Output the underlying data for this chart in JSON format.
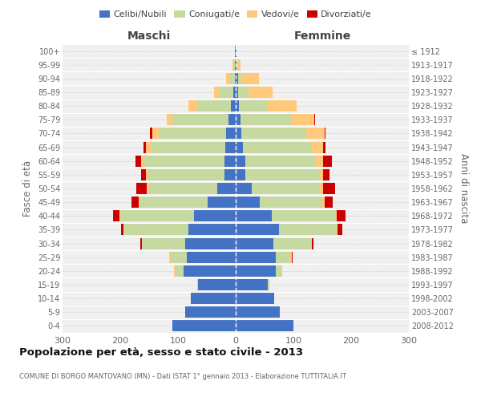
{
  "age_groups": [
    "0-4",
    "5-9",
    "10-14",
    "15-19",
    "20-24",
    "25-29",
    "30-34",
    "35-39",
    "40-44",
    "45-49",
    "50-54",
    "55-59",
    "60-64",
    "65-69",
    "70-74",
    "75-79",
    "80-84",
    "85-89",
    "90-94",
    "95-99",
    "100+"
  ],
  "birth_years": [
    "2008-2012",
    "2003-2007",
    "1998-2002",
    "1993-1997",
    "1988-1992",
    "1983-1987",
    "1978-1982",
    "1973-1977",
    "1968-1972",
    "1963-1967",
    "1958-1962",
    "1953-1957",
    "1948-1952",
    "1943-1947",
    "1938-1942",
    "1933-1937",
    "1928-1932",
    "1923-1927",
    "1918-1922",
    "1913-1917",
    "≤ 1912"
  ],
  "maschi": {
    "celibe": [
      110,
      88,
      78,
      65,
      90,
      85,
      88,
      82,
      72,
      48,
      32,
      20,
      20,
      18,
      16,
      12,
      8,
      4,
      2,
      2,
      1
    ],
    "coniugato": [
      0,
      0,
      0,
      2,
      15,
      28,
      75,
      112,
      128,
      118,
      118,
      132,
      138,
      128,
      118,
      98,
      58,
      24,
      8,
      2,
      0
    ],
    "vedovo": [
      0,
      0,
      0,
      0,
      2,
      2,
      0,
      1,
      2,
      2,
      4,
      4,
      6,
      10,
      10,
      10,
      16,
      10,
      6,
      2,
      0
    ],
    "divorziato": [
      0,
      0,
      0,
      0,
      0,
      0,
      2,
      4,
      10,
      12,
      18,
      8,
      10,
      4,
      4,
      0,
      0,
      0,
      0,
      0,
      0
    ]
  },
  "femmine": {
    "nubile": [
      100,
      76,
      66,
      56,
      70,
      70,
      65,
      75,
      62,
      42,
      28,
      16,
      16,
      12,
      10,
      8,
      6,
      4,
      4,
      2,
      1
    ],
    "coniugata": [
      0,
      0,
      0,
      2,
      10,
      25,
      65,
      100,
      110,
      108,
      118,
      128,
      122,
      118,
      112,
      88,
      50,
      18,
      6,
      2,
      0
    ],
    "vedova": [
      0,
      0,
      0,
      0,
      1,
      2,
      2,
      2,
      3,
      4,
      6,
      8,
      14,
      22,
      32,
      40,
      50,
      42,
      30,
      4,
      1
    ],
    "divorziata": [
      0,
      0,
      0,
      0,
      0,
      2,
      3,
      8,
      15,
      14,
      20,
      10,
      14,
      4,
      2,
      2,
      0,
      0,
      0,
      0,
      0
    ]
  },
  "colors": {
    "celibe": "#4472c4",
    "coniugato": "#c5d9a0",
    "vedovo": "#ffc87a",
    "divorziato": "#cc0000"
  },
  "xlim": 300,
  "title": "Popolazione per età, sesso e stato civile - 2013",
  "subtitle": "COMUNE DI BORGO MANTOVANO (MN) - Dati ISTAT 1° gennaio 2013 - Elaborazione TUTTITALIA.IT",
  "ylabel_left": "Fasce di età",
  "ylabel_right": "Anni di nascita",
  "xlabel_maschi": "Maschi",
  "xlabel_femmine": "Femmine",
  "bg_color": "#ffffff",
  "plot_bg": "#f0f0f0",
  "grid_color": "#cccccc"
}
